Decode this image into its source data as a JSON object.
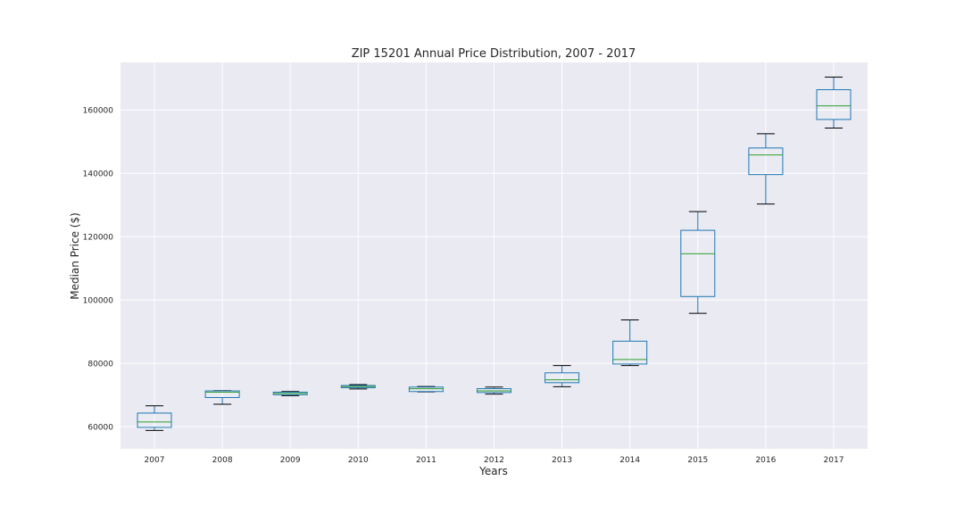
{
  "chart_data": {
    "type": "box",
    "title": "ZIP 15201 Annual Price Distribution, 2007 - 2017",
    "xlabel": "Years",
    "ylabel": "Median Price ($)",
    "ylim": [
      53000,
      175000
    ],
    "yticks": [
      60000,
      80000,
      100000,
      120000,
      140000,
      160000
    ],
    "grid": true,
    "colors": {
      "background": "#eaeaf2",
      "grid": "#ffffff",
      "box": "#1f77b4",
      "median": "#2ca02c",
      "whisker_cap": "#000000"
    },
    "categories": [
      "2007",
      "2008",
      "2009",
      "2010",
      "2011",
      "2012",
      "2013",
      "2014",
      "2015",
      "2016",
      "2017"
    ],
    "boxes": [
      {
        "label": "2007",
        "whislo": 58800,
        "q1": 59800,
        "med": 61500,
        "q3": 64300,
        "whishi": 66600
      },
      {
        "label": "2008",
        "whislo": 67100,
        "q1": 69200,
        "med": 70900,
        "q3": 71300,
        "whishi": 71400
      },
      {
        "label": "2009",
        "whislo": 69800,
        "q1": 70100,
        "med": 70500,
        "q3": 70900,
        "whishi": 71100
      },
      {
        "label": "2010",
        "whislo": 71900,
        "q1": 72300,
        "med": 72700,
        "q3": 73000,
        "whishi": 73300
      },
      {
        "label": "2011",
        "whislo": 71000,
        "q1": 71100,
        "med": 72000,
        "q3": 72500,
        "whishi": 72700
      },
      {
        "label": "2012",
        "whislo": 70300,
        "q1": 70800,
        "med": 71300,
        "q3": 72000,
        "whishi": 72500
      },
      {
        "label": "2013",
        "whislo": 72600,
        "q1": 73900,
        "med": 74800,
        "q3": 77000,
        "whishi": 79300
      },
      {
        "label": "2014",
        "whislo": 79300,
        "q1": 79800,
        "med": 81200,
        "q3": 87000,
        "whishi": 93700
      },
      {
        "label": "2015",
        "whislo": 95800,
        "q1": 101100,
        "med": 114600,
        "q3": 122000,
        "whishi": 127900
      },
      {
        "label": "2016",
        "whislo": 130300,
        "q1": 139600,
        "med": 145800,
        "q3": 148000,
        "whishi": 152500
      },
      {
        "label": "2017",
        "whislo": 154300,
        "q1": 157000,
        "med": 161300,
        "q3": 166400,
        "whishi": 170400
      }
    ]
  }
}
